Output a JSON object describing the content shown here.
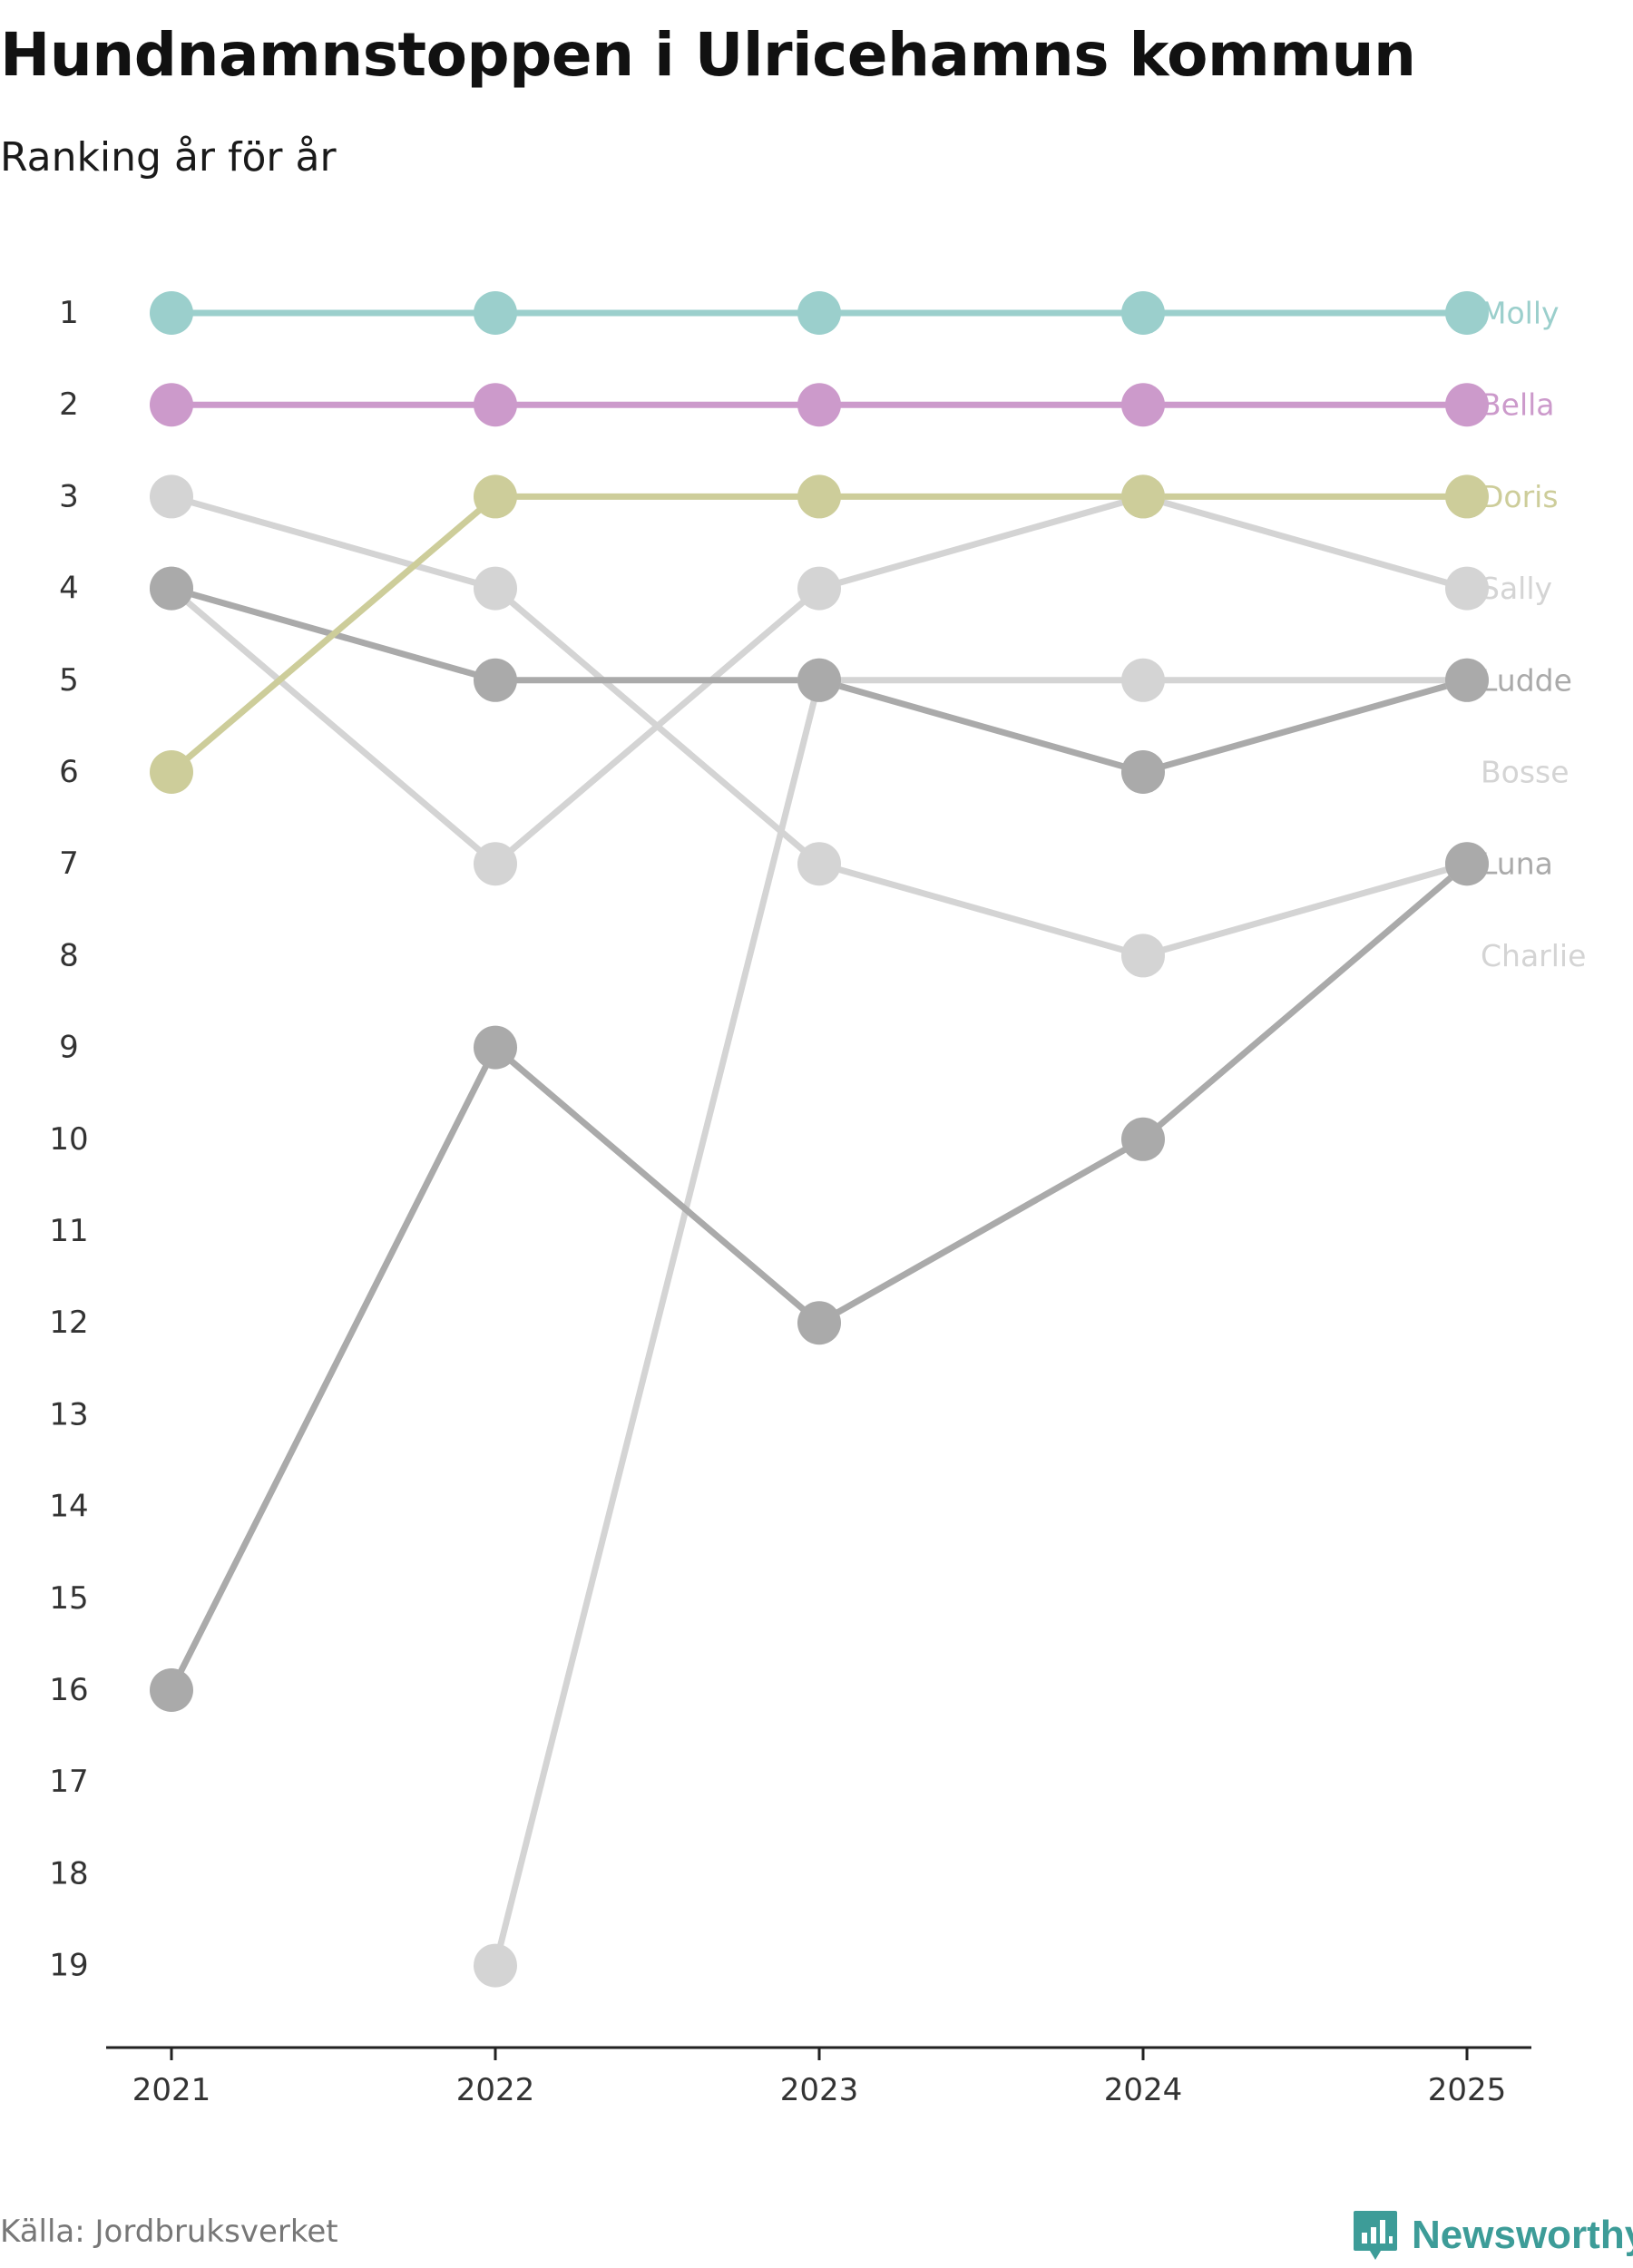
{
  "header": {
    "title": "Hundnamnstoppen i Ulricehamns kommun",
    "subtitle": "Ranking år för år"
  },
  "footer": {
    "source": "Källa: Jordbruksverket",
    "brand": "Newsworthy"
  },
  "colors": {
    "Molly": "#9bcfcc",
    "Bella": "#cc9acb",
    "Doris": "#cdcd9a",
    "light": "#d4d4d4",
    "dark": "#aaaaaa",
    "axis": "#222222",
    "brand": "#3d9c98"
  },
  "chart_data": {
    "type": "line",
    "title": "Hundnamnstoppen i Ulricehamns kommun",
    "subtitle": "Ranking år för år",
    "xlabel": "",
    "ylabel": "",
    "x": [
      "2021",
      "2022",
      "2023",
      "2024",
      "2025"
    ],
    "y_ticks": [
      1,
      2,
      3,
      4,
      5,
      6,
      7,
      8,
      9,
      10,
      11,
      12,
      13,
      14,
      15,
      16,
      17,
      18,
      19
    ],
    "ylim": [
      19,
      1
    ],
    "y_inverted": true,
    "grid": false,
    "series": [
      {
        "name": "Molly",
        "color": "#9bcfcc",
        "values": [
          1,
          1,
          1,
          1,
          1
        ]
      },
      {
        "name": "Bella",
        "color": "#cc9acb",
        "values": [
          2,
          2,
          2,
          2,
          2
        ]
      },
      {
        "name": "Doris",
        "color": "#cdcd9a",
        "values": [
          6,
          3,
          3,
          3,
          3
        ]
      },
      {
        "name": "Sally",
        "color": "#d4d4d4",
        "values": [
          3,
          4,
          7,
          8,
          7
        ]
      },
      {
        "name": "Ludde",
        "color": "#aaaaaa",
        "values": [
          4,
          5,
          5,
          6,
          5
        ]
      },
      {
        "name": "Bosse",
        "color": "#d4d4d4",
        "values": [
          4,
          7,
          4,
          3,
          4
        ]
      },
      {
        "name": "Luna",
        "color": "#aaaaaa",
        "values": [
          16,
          9,
          12,
          10,
          7
        ]
      },
      {
        "name": "Charlie",
        "color": "#d4d4d4",
        "values": [
          null,
          19,
          5,
          5,
          5
        ]
      }
    ],
    "end_labels": [
      {
        "name": "Molly",
        "rank": 1
      },
      {
        "name": "Bella",
        "rank": 2
      },
      {
        "name": "Doris",
        "rank": 3
      },
      {
        "name": "Sally",
        "rank": 4
      },
      {
        "name": "Ludde",
        "rank": 5
      },
      {
        "name": "Bosse",
        "rank": 6
      },
      {
        "name": "Luna",
        "rank": 7
      },
      {
        "name": "Charlie",
        "rank": 8
      }
    ]
  }
}
